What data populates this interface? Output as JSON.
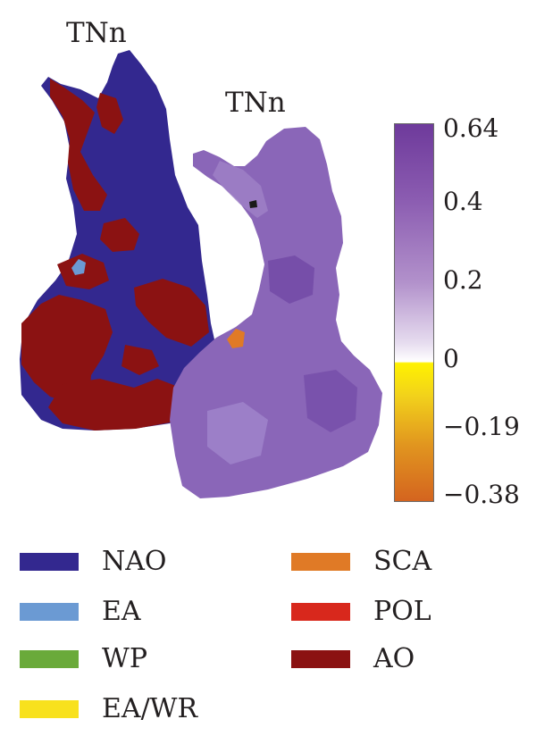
{
  "titles": {
    "left": "TNn",
    "right": "TNn"
  },
  "colorbar": {
    "ticks": [
      "0.64",
      "0.4",
      "0.2",
      "0",
      "−0.19",
      "−0.38"
    ],
    "colors": {
      "max": "#6e3a9b",
      "zero": "#ffffff",
      "min": "#d4641f"
    }
  },
  "legend": [
    {
      "label": "NAO",
      "color": "#33288f"
    },
    {
      "label": "EA",
      "color": "#6b9ad3"
    },
    {
      "label": "WP",
      "color": "#6aaa3a"
    },
    {
      "label": "EA/WR",
      "color": "#f8e11d"
    },
    {
      "label": "SCA",
      "color": "#e07a26"
    },
    {
      "label": "POL",
      "color": "#d8281c"
    },
    {
      "label": "AO",
      "color": "#8b1212"
    }
  ],
  "colors": {
    "nao": "#33288f",
    "ao": "#8b1212",
    "ea": "#6b9ad3",
    "sca": "#e07a26",
    "map_fill": "#8a66b8",
    "map_dark": "#6e45a3"
  }
}
